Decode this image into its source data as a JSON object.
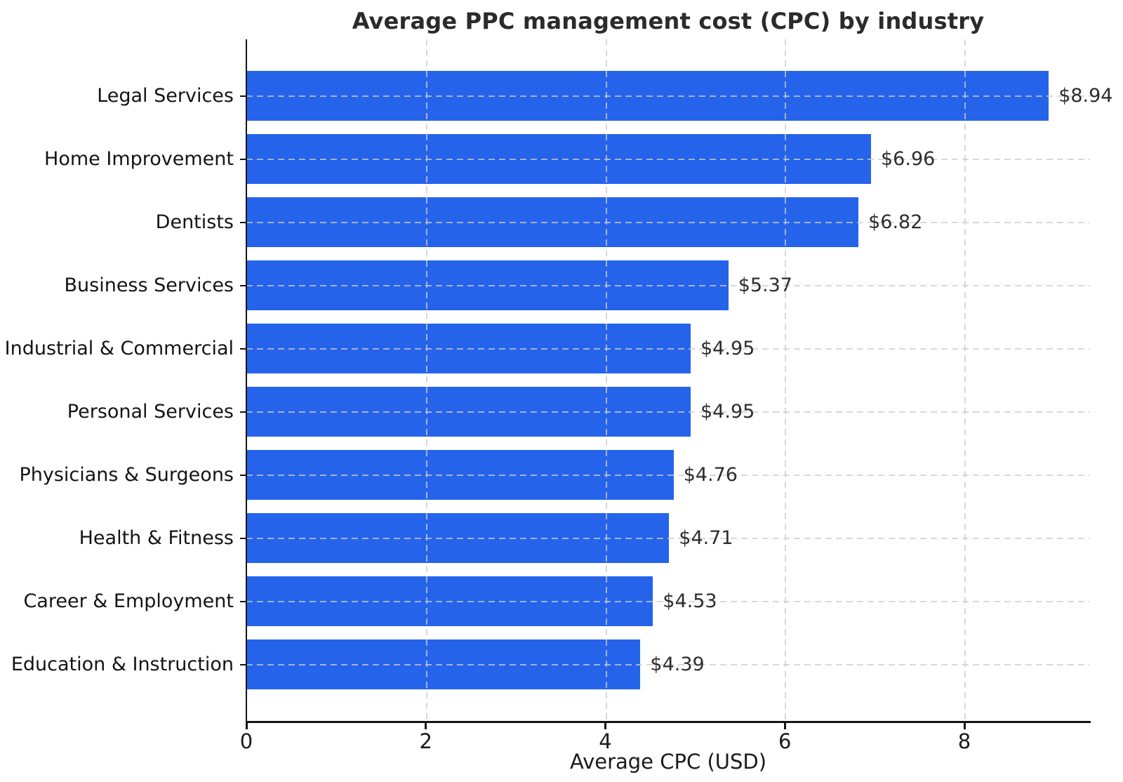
{
  "chart_data": {
    "type": "bar",
    "orientation": "horizontal",
    "title": "Average PPC management cost (CPC) by industry",
    "xlabel": "Average CPC (USD)",
    "categories": [
      "Legal Services",
      "Home Improvement",
      "Dentists",
      "Business Services",
      "Industrial & Commercial",
      "Personal Services",
      "Physicians & Surgeons",
      "Health & Fitness",
      "Career & Employment",
      "Education & Instruction"
    ],
    "values": [
      8.94,
      6.96,
      6.82,
      5.37,
      4.95,
      4.95,
      4.76,
      4.71,
      4.53,
      4.39
    ],
    "value_labels": [
      "$8.94",
      "$6.96",
      "$6.82",
      "$5.37",
      "$4.95",
      "$4.95",
      "$4.76",
      "$4.71",
      "$4.53",
      "$4.39"
    ],
    "x_ticks": [
      0,
      2,
      4,
      6,
      8
    ],
    "x_tick_labels": [
      "0",
      "2",
      "4",
      "6",
      "8"
    ],
    "xlim": [
      0,
      9.4
    ],
    "grid": "dashed",
    "legend": "none",
    "bar_color": "#2563eb",
    "grid_color": "#cccccc",
    "axis_color": "#141414",
    "text_color": "#1a1a1a"
  }
}
